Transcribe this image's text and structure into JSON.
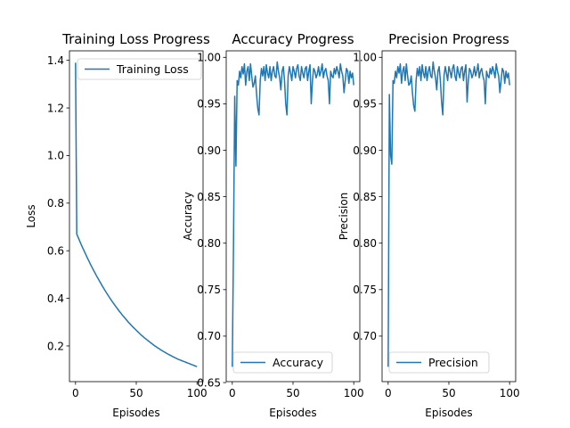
{
  "chart_data": [
    {
      "type": "line",
      "title": "Training Loss Progress",
      "xlabel": "Episodes",
      "ylabel": "Loss",
      "xlim": [
        -5,
        105
      ],
      "ylim": [
        0.05,
        1.44
      ],
      "xticks": [
        0,
        50,
        100
      ],
      "yticks": [
        0.2,
        0.4,
        0.6,
        0.8,
        1.0,
        1.2,
        1.4
      ],
      "ytick_labels": [
        "0.2",
        "0.4",
        "0.6",
        "0.8",
        "1.0",
        "1.2",
        "1.4"
      ],
      "legend_position": "top-right",
      "grid": false,
      "series": [
        {
          "name": "Training Loss",
          "color": "#1f77b4",
          "x": [
            0,
            1,
            2,
            3,
            4,
            5,
            6,
            7,
            8,
            9,
            10,
            11,
            12,
            13,
            14,
            15,
            16,
            17,
            18,
            19,
            20,
            21,
            22,
            23,
            24,
            25,
            26,
            27,
            28,
            29,
            30,
            31,
            32,
            33,
            34,
            35,
            36,
            37,
            38,
            39,
            40,
            41,
            42,
            43,
            44,
            45,
            46,
            47,
            48,
            49,
            50,
            51,
            52,
            53,
            54,
            55,
            56,
            57,
            58,
            59,
            60,
            61,
            62,
            63,
            64,
            65,
            66,
            67,
            68,
            69,
            70,
            71,
            72,
            73,
            74,
            75,
            76,
            77,
            78,
            79,
            80,
            81,
            82,
            83,
            84,
            85,
            86,
            87,
            88,
            89,
            90,
            91,
            92,
            93,
            94,
            95,
            96,
            97,
            98,
            99,
            100
          ],
          "values": [
            1.39,
            0.67,
            0.658,
            0.646,
            0.634,
            0.622,
            0.611,
            0.6,
            0.589,
            0.578,
            0.567,
            0.557,
            0.546,
            0.536,
            0.526,
            0.516,
            0.507,
            0.497,
            0.488,
            0.479,
            0.47,
            0.461,
            0.452,
            0.444,
            0.435,
            0.427,
            0.419,
            0.411,
            0.403,
            0.396,
            0.388,
            0.381,
            0.374,
            0.367,
            0.36,
            0.353,
            0.346,
            0.34,
            0.333,
            0.327,
            0.321,
            0.315,
            0.309,
            0.303,
            0.297,
            0.292,
            0.286,
            0.281,
            0.276,
            0.271,
            0.266,
            0.261,
            0.256,
            0.251,
            0.246,
            0.242,
            0.237,
            0.233,
            0.229,
            0.225,
            0.221,
            0.217,
            0.213,
            0.209,
            0.205,
            0.201,
            0.198,
            0.194,
            0.191,
            0.188,
            0.184,
            0.181,
            0.178,
            0.175,
            0.172,
            0.169,
            0.166,
            0.163,
            0.161,
            0.158,
            0.155,
            0.153,
            0.15,
            0.148,
            0.145,
            0.143,
            0.141,
            0.139,
            0.137,
            0.135,
            0.133,
            0.131,
            0.129,
            0.127,
            0.125,
            0.123,
            0.121,
            0.119,
            0.117,
            0.115,
            0.113
          ]
        }
      ]
    },
    {
      "type": "line",
      "title": "Accuracy Progress",
      "xlabel": "Episodes",
      "ylabel": "Accuracy",
      "xlim": [
        -5,
        105
      ],
      "ylim": [
        0.651,
        1.007
      ],
      "xticks": [
        0,
        50,
        100
      ],
      "yticks": [
        0.65,
        0.7,
        0.75,
        0.8,
        0.85,
        0.9,
        0.95,
        1.0
      ],
      "ytick_labels": [
        "0.65",
        "0.70",
        "0.75",
        "0.80",
        "0.85",
        "0.90",
        "0.95",
        "1.00"
      ],
      "legend_position": "bottom-right",
      "grid": false,
      "series": [
        {
          "name": "Accuracy",
          "color": "#1f77b4",
          "x": [
            0,
            1,
            2,
            3,
            4,
            5,
            6,
            7,
            8,
            9,
            10,
            11,
            12,
            13,
            14,
            15,
            16,
            17,
            18,
            19,
            20,
            21,
            22,
            23,
            24,
            25,
            26,
            27,
            28,
            29,
            30,
            31,
            32,
            33,
            34,
            35,
            36,
            37,
            38,
            39,
            40,
            41,
            42,
            43,
            44,
            45,
            46,
            47,
            48,
            49,
            50,
            51,
            52,
            53,
            54,
            55,
            56,
            57,
            58,
            59,
            60,
            61,
            62,
            63,
            64,
            65,
            66,
            67,
            68,
            69,
            70,
            71,
            72,
            73,
            74,
            75,
            76,
            77,
            78,
            79,
            80,
            81,
            82,
            83,
            84,
            85,
            86,
            87,
            88,
            89,
            90,
            91,
            92,
            93,
            94,
            95,
            96,
            97,
            98,
            99,
            100
          ],
          "values": [
            0.667,
            0.8,
            0.958,
            0.883,
            0.975,
            0.97,
            0.985,
            0.978,
            0.99,
            0.982,
            0.993,
            0.97,
            0.985,
            0.99,
            0.975,
            0.993,
            0.98,
            0.968,
            0.972,
            0.98,
            0.96,
            0.945,
            0.938,
            0.975,
            0.988,
            0.98,
            0.99,
            0.975,
            0.992,
            0.983,
            0.978,
            0.99,
            0.975,
            0.985,
            0.99,
            0.98,
            0.978,
            0.995,
            0.985,
            0.978,
            0.965,
            0.985,
            0.99,
            0.975,
            0.95,
            0.938,
            0.98,
            0.99,
            0.983,
            0.975,
            0.99,
            0.985,
            0.978,
            0.988,
            0.992,
            0.98,
            0.975,
            0.99,
            0.983,
            0.978,
            0.988,
            0.99,
            0.975,
            0.985,
            0.992,
            0.95,
            0.975,
            0.988,
            0.985,
            0.978,
            0.982,
            0.99,
            0.98,
            0.985,
            0.993,
            0.978,
            0.985,
            0.988,
            0.98,
            0.975,
            0.95,
            0.985,
            0.98,
            0.978,
            0.988,
            0.982,
            0.99,
            0.985,
            0.978,
            0.993,
            0.985,
            0.98,
            0.962,
            0.975,
            0.988,
            0.985,
            0.972,
            0.985,
            0.978,
            0.983,
            0.97
          ]
        }
      ]
    },
    {
      "type": "line",
      "title": "Precision Progress",
      "xlabel": "Episodes",
      "ylabel": "Precision",
      "xlim": [
        -5,
        105
      ],
      "ylim": [
        0.651,
        1.007
      ],
      "xticks": [
        0,
        50,
        100
      ],
      "yticks": [
        0.7,
        0.75,
        0.8,
        0.85,
        0.9,
        0.95,
        1.0
      ],
      "ytick_labels": [
        "0.70",
        "0.75",
        "0.80",
        "0.85",
        "0.90",
        "0.95",
        "1.00"
      ],
      "legend_position": "bottom-right",
      "grid": false,
      "series": [
        {
          "name": "Precision",
          "color": "#1f77b4",
          "x": [
            0,
            1,
            2,
            3,
            4,
            5,
            6,
            7,
            8,
            9,
            10,
            11,
            12,
            13,
            14,
            15,
            16,
            17,
            18,
            19,
            20,
            21,
            22,
            23,
            24,
            25,
            26,
            27,
            28,
            29,
            30,
            31,
            32,
            33,
            34,
            35,
            36,
            37,
            38,
            39,
            40,
            41,
            42,
            43,
            44,
            45,
            46,
            47,
            48,
            49,
            50,
            51,
            52,
            53,
            54,
            55,
            56,
            57,
            58,
            59,
            60,
            61,
            62,
            63,
            64,
            65,
            66,
            67,
            68,
            69,
            70,
            71,
            72,
            73,
            74,
            75,
            76,
            77,
            78,
            79,
            80,
            81,
            82,
            83,
            84,
            85,
            86,
            87,
            88,
            89,
            90,
            91,
            92,
            93,
            94,
            95,
            96,
            97,
            98,
            99,
            100
          ],
          "values": [
            0.667,
            0.96,
            0.895,
            0.885,
            0.975,
            0.972,
            0.985,
            0.978,
            0.99,
            0.983,
            0.993,
            0.972,
            0.985,
            0.99,
            0.975,
            0.993,
            0.98,
            0.97,
            0.972,
            0.98,
            0.962,
            0.948,
            0.942,
            0.975,
            0.988,
            0.98,
            0.99,
            0.975,
            0.992,
            0.983,
            0.978,
            0.99,
            0.975,
            0.985,
            0.99,
            0.98,
            0.978,
            0.995,
            0.985,
            0.978,
            0.965,
            0.985,
            0.99,
            0.975,
            0.952,
            0.938,
            0.98,
            0.99,
            0.983,
            0.975,
            0.99,
            0.985,
            0.978,
            0.988,
            0.992,
            0.98,
            0.975,
            0.99,
            0.983,
            0.978,
            0.988,
            0.99,
            0.975,
            0.985,
            0.992,
            0.952,
            0.975,
            0.988,
            0.985,
            0.978,
            0.982,
            0.99,
            0.98,
            0.985,
            0.993,
            0.978,
            0.985,
            0.988,
            0.98,
            0.975,
            0.95,
            0.985,
            0.98,
            0.978,
            0.988,
            0.982,
            0.99,
            0.985,
            0.978,
            0.993,
            0.985,
            0.98,
            0.962,
            0.975,
            0.988,
            0.985,
            0.972,
            0.985,
            0.978,
            0.983,
            0.97
          ]
        }
      ]
    }
  ]
}
